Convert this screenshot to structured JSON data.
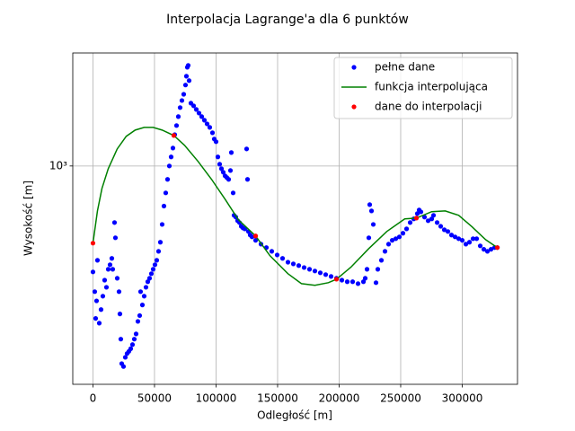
{
  "chart_data": {
    "type": "line",
    "title": "Interpolacja Lagrange'a dla 6 punktów",
    "x_label": "Odległość [m]",
    "y_label": "Wysokość [m]",
    "xlim": [
      -16400,
      344900
    ],
    "ylim": [
      200,
      2300
    ],
    "y_scale": "log",
    "xticks": [
      0,
      50000,
      100000,
      150000,
      200000,
      250000,
      300000
    ],
    "yticks": [
      {
        "value": 1000,
        "label": "10³"
      }
    ],
    "grid": true,
    "legend": "upper right",
    "series": [
      {
        "name": "pełne dane",
        "style": "markers",
        "color": "#0000ff",
        "x": [
          0,
          1460,
          2190,
          2920,
          3650,
          5110,
          6570,
          8030,
          9490,
          10950,
          12410,
          13870,
          15330,
          16060,
          17520,
          18250,
          19710,
          21170,
          21900,
          22630,
          23360,
          24820,
          26280,
          27740,
          29200,
          30660,
          32120,
          33580,
          35040,
          36500,
          37960,
          38690,
          40150,
          41610,
          43070,
          44530,
          45990,
          47450,
          48910,
          50370,
          51830,
          53290,
          54750,
          56210,
          57670,
          59130,
          60590,
          62050,
          63510,
          64970,
          66430,
          67890,
          69350,
          70810,
          72270,
          73730,
          75190,
          75920,
          76650,
          77380,
          78110,
          79570,
          81760,
          83950,
          86140,
          88330,
          90520,
          92710,
          94900,
          97090,
          98550,
          100010,
          101470,
          102930,
          104390,
          105850,
          107310,
          108770,
          110230,
          111690,
          112420,
          113880,
          114610,
          116070,
          117530,
          118990,
          120450,
          121910,
          123370,
          124830,
          125560,
          126290,
          127750,
          129210,
          132130,
          136510,
          140890,
          145270,
          149650,
          154030,
          158410,
          162790,
          167170,
          171550,
          175930,
          180310,
          184690,
          189070,
          193450,
          197830,
          202210,
          206590,
          210970,
          215350,
          219730,
          221190,
          222650,
          224110,
          224840,
          226300,
          227760,
          229950,
          231410,
          234330,
          237250,
          240170,
          243090,
          246010,
          248930,
          251850,
          254770,
          257690,
          260610,
          263530,
          264990,
          266450,
          269370,
          272290,
          275210,
          276670,
          279590,
          282510,
          285430,
          288350,
          291270,
          294190,
          297110,
          300030,
          302950,
          305870,
          308790,
          311710,
          314630,
          317550,
          320470,
          323390,
          326310,
          328500
        ],
        "values": [
          458,
          396,
          325,
          370,
          499,
          314,
          347,
          383,
          431,
          409,
          467,
          483,
          506,
          467,
          659,
          589,
          437,
          396,
          336,
          279,
          233,
          228,
          244,
          251,
          255,
          260,
          268,
          279,
          290,
          318,
          332,
          396,
          359,
          383,
          409,
          426,
          437,
          452,
          467,
          483,
          499,
          533,
          570,
          650,
          744,
          820,
          906,
          1000,
          1069,
          1141,
          1260,
          1347,
          1439,
          1538,
          1620,
          1696,
          1816,
          1938,
          2070,
          2099,
          1876,
          1589,
          1558,
          1517,
          1477,
          1439,
          1401,
          1364,
          1329,
          1277,
          1220,
          1196,
          1069,
          1013,
          980,
          955,
          930,
          918,
          906,
          967,
          1104,
          820,
          695,
          686,
          668,
          659,
          641,
          633,
          629,
          1134,
          906,
          617,
          601,
          593,
          578,
          562,
          548,
          533,
          519,
          506,
          492,
          486,
          480,
          473,
          467,
          461,
          455,
          449,
          443,
          437,
          431,
          426,
          426,
          420,
          426,
          437,
          467,
          589,
          752,
          718,
          650,
          423,
          467,
          499,
          533,
          562,
          578,
          585,
          593,
          609,
          629,
          659,
          677,
          704,
          723,
          713,
          686,
          668,
          677,
          695,
          659,
          641,
          625,
          617,
          601,
          593,
          585,
          578,
          562,
          570,
          585,
          585,
          555,
          541,
          533,
          541,
          548,
          548
        ]
      },
      {
        "name": "funkcja interpolująca",
        "style": "line",
        "color": "#008000",
        "x": [
          0,
          3650,
          7300,
          12410,
          19710,
          27010,
          34310,
          41610,
          48910,
          56210,
          65700,
          74460,
          85410,
          96360,
          107310,
          118260,
          132130,
          143810,
          158410,
          169360,
          180310,
          191260,
          197830,
          209510,
          224110,
          238710,
          253310,
          262800,
          275210,
          286160,
          297110,
          308060,
          319010,
          328500
        ],
        "values": [
          566,
          718,
          847,
          980,
          1134,
          1244,
          1303,
          1329,
          1329,
          1303,
          1252,
          1164,
          1034,
          906,
          783,
          672,
          597,
          516,
          452,
          420,
          415,
          423,
          434,
          474,
          544,
          617,
          677,
          681,
          714,
          718,
          695,
          638,
          581,
          548
        ]
      },
      {
        "name": "dane do interpolacji",
        "style": "markers",
        "color": "#ff0000",
        "x": [
          0,
          65700,
          132130,
          197830,
          262800,
          328500
        ],
        "values": [
          566,
          1252,
          597,
          434,
          681,
          548
        ]
      }
    ]
  }
}
